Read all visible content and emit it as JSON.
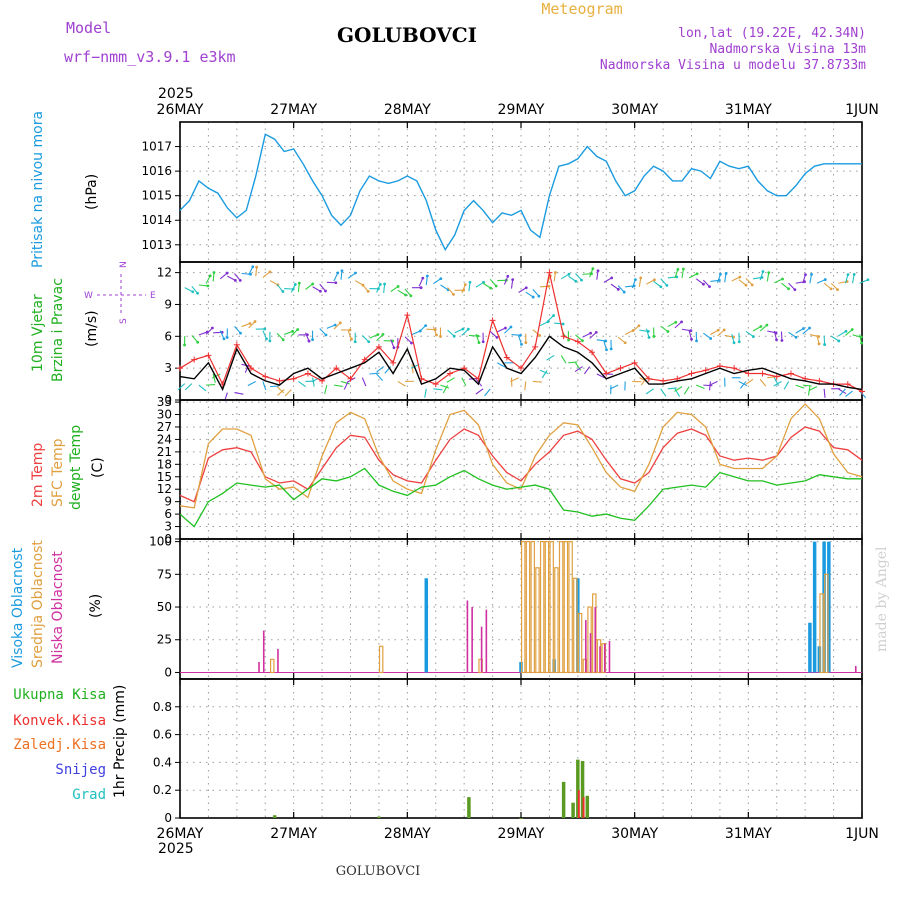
{
  "header": {
    "model_label": "Model",
    "model_name": "wrf−nmm_v3.9.1  e3km",
    "meteogram": "Meteogram",
    "location": "GOLUBOVCI",
    "lonlat": "lon,lat (19.22E, 42.34N)",
    "elevation": "Nadmorska Visina 13m",
    "model_elevation": "Nadmorska Visina u modelu 37.8733m",
    "footer_location": "GOLUBOVCI",
    "watermark": "made by Angel",
    "colors": {
      "model": "#a040d0",
      "title": "#000000",
      "meteogram": "#e8b040",
      "info": "#a040d0"
    }
  },
  "time_axis": {
    "year": "2025",
    "labels": [
      "26MAY",
      "27MAY",
      "28MAY",
      "29MAY",
      "30MAY",
      "31MAY",
      "1JUN"
    ],
    "range_hours": [
      0,
      144
    ]
  },
  "panel_labels": {
    "pressure": {
      "title": "Pritisak na nivou mora",
      "unit": "(hPa)",
      "color": "#1a9be0"
    },
    "wind": {
      "title1": "10m Vjetar",
      "title2": "Brzina i Pravac",
      "unit": "(m/s)",
      "color": "#20b020",
      "compass_top": "N",
      "compass_left": "W",
      "compass_right": "E",
      "compass_bottom": "S",
      "compass_color": "#a040d0"
    },
    "temp": {
      "t2m": "2m Temp",
      "sfc": "SFC Temp",
      "dew": "dewpt Temp",
      "unit": "(C)"
    },
    "cloud": {
      "high": "Visoka Oblacnost",
      "mid": "Srednja Oblacnost",
      "low": "Niska Oblacnost",
      "unit": "(%)"
    },
    "precip": {
      "total": "Ukupna Kisa",
      "conv": "Konvek.Kisa",
      "frz": "Zaledj.Kisa",
      "snow": "Snijeg",
      "hail": "Grad",
      "unit": "1hr Precip (mm)"
    }
  },
  "chart_data": [
    {
      "type": "line",
      "name": "pressure",
      "ylim": [
        1012.3,
        1018.0
      ],
      "yticks": [
        1013,
        1014,
        1015,
        1016,
        1017
      ],
      "ytick_labels": [
        "1013",
        "1014",
        "1015",
        "1016",
        "1017"
      ],
      "series": [
        {
          "name": "Pritisak na nivou mora",
          "color": "#1a9be0",
          "x": [
            0,
            2,
            4,
            6,
            8,
            10,
            12,
            14,
            16,
            18,
            20,
            22,
            24,
            26,
            28,
            30,
            32,
            34,
            36,
            38,
            40,
            42,
            44,
            46,
            48,
            50,
            52,
            54,
            56,
            58,
            60,
            62,
            64,
            66,
            68,
            70,
            72,
            74,
            76,
            78,
            80,
            82,
            84,
            86,
            88,
            90,
            92,
            94,
            96,
            98,
            100,
            102,
            104,
            106,
            108,
            110,
            112,
            114,
            116,
            118,
            120,
            122,
            124,
            126,
            128,
            130,
            132,
            134,
            136,
            138,
            140,
            142,
            144
          ],
          "y": [
            1014.4,
            1014.8,
            1015.6,
            1015.3,
            1015.1,
            1014.5,
            1014.1,
            1014.4,
            1015.8,
            1017.5,
            1017.3,
            1016.8,
            1016.9,
            1016.3,
            1015.6,
            1015.0,
            1014.2,
            1013.8,
            1014.2,
            1015.2,
            1015.8,
            1015.6,
            1015.5,
            1015.6,
            1015.8,
            1015.6,
            1014.8,
            1013.6,
            1012.8,
            1013.4,
            1014.4,
            1014.8,
            1014.4,
            1013.9,
            1014.3,
            1014.2,
            1014.4,
            1013.6,
            1013.3,
            1015.0,
            1016.2,
            1016.3,
            1016.5,
            1017.0,
            1016.6,
            1016.4,
            1015.6,
            1015.0,
            1015.2,
            1015.8,
            1016.2,
            1016.0,
            1015.6,
            1015.6,
            1016.1,
            1016.0,
            1015.7,
            1016.4,
            1016.2,
            1016.1,
            1016.2,
            1015.6,
            1015.2,
            1015.0,
            1015.0,
            1015.4,
            1015.9,
            1016.2,
            1016.3,
            1016.3,
            1016.3,
            1016.3,
            1016.3
          ]
        }
      ]
    },
    {
      "type": "line",
      "name": "wind",
      "ylim": [
        0,
        13
      ],
      "yticks": [
        0,
        3,
        6,
        9,
        12
      ],
      "ytick_labels": [
        "0",
        "3",
        "6",
        "9",
        "12"
      ],
      "series": [
        {
          "name": "Brzina (black)",
          "color": "#000000",
          "x": [
            0,
            3,
            6,
            9,
            12,
            15,
            18,
            21,
            24,
            27,
            30,
            33,
            36,
            39,
            42,
            45,
            48,
            51,
            54,
            57,
            60,
            63,
            66,
            69,
            72,
            75,
            78,
            81,
            84,
            87,
            90,
            93,
            96,
            99,
            102,
            105,
            108,
            111,
            114,
            117,
            120,
            123,
            126,
            129,
            132,
            135,
            138,
            141,
            144
          ],
          "y": [
            2.2,
            2.0,
            3.5,
            1.0,
            4.8,
            2.5,
            1.8,
            1.4,
            2.5,
            3.0,
            2.0,
            2.5,
            3.0,
            3.5,
            4.5,
            2.5,
            4.8,
            1.5,
            2.0,
            3.0,
            2.8,
            1.5,
            5.0,
            3.0,
            2.5,
            4.0,
            6.0,
            5.0,
            4.5,
            3.5,
            2.0,
            2.5,
            3.0,
            1.5,
            1.5,
            1.8,
            2.0,
            2.5,
            3.0,
            2.5,
            2.8,
            3.0,
            2.5,
            2.0,
            1.8,
            1.5,
            1.5,
            1.2,
            1.0
          ]
        },
        {
          "name": "Udari (red)",
          "color": "#ee3030",
          "x": [
            0,
            3,
            6,
            9,
            12,
            15,
            18,
            21,
            24,
            27,
            30,
            33,
            36,
            39,
            42,
            45,
            48,
            51,
            54,
            57,
            60,
            63,
            66,
            69,
            72,
            75,
            78,
            81,
            84,
            87,
            90,
            93,
            96,
            99,
            102,
            105,
            108,
            111,
            114,
            117,
            120,
            123,
            126,
            129,
            132,
            135,
            138,
            141,
            144
          ],
          "y": [
            3.0,
            3.8,
            4.2,
            1.5,
            5.2,
            3.0,
            2.2,
            1.8,
            2.0,
            2.5,
            1.8,
            3.0,
            2.0,
            3.8,
            5.0,
            3.5,
            8.0,
            2.0,
            1.5,
            2.5,
            3.0,
            2.0,
            7.5,
            4.0,
            3.0,
            5.0,
            12.0,
            6.0,
            5.5,
            4.5,
            2.5,
            3.0,
            3.5,
            2.0,
            1.8,
            2.0,
            2.5,
            2.8,
            3.2,
            3.0,
            2.5,
            2.5,
            2.2,
            2.5,
            2.0,
            1.8,
            1.5,
            1.5,
            0.8
          ]
        },
        {
          "name": "Vjetar niz 1",
          "color": "#20b0c0",
          "x": [
            0,
            6,
            12,
            18,
            24,
            30,
            36,
            42,
            48,
            54,
            60,
            66,
            72,
            78,
            84,
            90,
            96,
            102,
            108,
            114,
            120,
            126,
            132,
            138,
            144
          ],
          "y": [
            10.5,
            11.0,
            12.0,
            11.5,
            10.0,
            11.0,
            11.5,
            10.0,
            10.5,
            11.0,
            10.0,
            11.5,
            10.0,
            11.0,
            12.0,
            11.0,
            10.5,
            11.5,
            11.5,
            11.0,
            11.5,
            11.0,
            11.0,
            11.0,
            11.0
          ]
        },
        {
          "name": "Vjetar niz 2",
          "color": "#20b0c0",
          "x": [
            0,
            6,
            12,
            18,
            24,
            30,
            36,
            42,
            48,
            54,
            60,
            66,
            72,
            78,
            84,
            90,
            96,
            102,
            108,
            114,
            120,
            126,
            132,
            138,
            144
          ],
          "y": [
            6.0,
            6.2,
            7.0,
            6.5,
            6.0,
            6.8,
            6.5,
            5.5,
            6.0,
            7.0,
            6.0,
            6.5,
            6.0,
            7.5,
            6.0,
            5.5,
            6.5,
            7.0,
            6.5,
            6.0,
            6.5,
            6.5,
            6.2,
            6.0,
            6.2
          ]
        }
      ]
    },
    {
      "type": "line",
      "name": "temperature",
      "ylim": [
        0,
        33.5
      ],
      "yticks": [
        0,
        3,
        6,
        9,
        12,
        15,
        18,
        21,
        24,
        27,
        30,
        33
      ],
      "ytick_labels": [
        "0",
        "3",
        "6",
        "9",
        "12",
        "15",
        "18",
        "21",
        "24",
        "27",
        "30",
        "33"
      ],
      "series": [
        {
          "name": "2m Temp",
          "color": "#ee4040",
          "x": [
            0,
            3,
            6,
            9,
            12,
            15,
            18,
            21,
            24,
            27,
            30,
            33,
            36,
            39,
            42,
            45,
            48,
            51,
            54,
            57,
            60,
            63,
            66,
            69,
            72,
            75,
            78,
            81,
            84,
            87,
            90,
            93,
            96,
            99,
            102,
            105,
            108,
            111,
            114,
            117,
            120,
            123,
            126,
            129,
            132,
            135,
            138,
            141,
            144
          ],
          "y": [
            10.5,
            9.0,
            19.5,
            21.5,
            22.0,
            21.0,
            15.0,
            13.5,
            14.0,
            12.0,
            17.0,
            22.0,
            25.0,
            24.5,
            19.0,
            15.5,
            14.0,
            13.5,
            19.0,
            24.0,
            26.5,
            25.0,
            20.0,
            16.0,
            14.0,
            18.0,
            21.0,
            25.0,
            26.0,
            24.0,
            19.0,
            14.5,
            13.5,
            16.0,
            22.0,
            25.5,
            26.5,
            25.0,
            20.0,
            19.0,
            19.5,
            19.0,
            20.0,
            24.5,
            27.0,
            26.0,
            22.0,
            21.5,
            19.0
          ]
        },
        {
          "name": "SFC Temp",
          "color": "#e0a040",
          "x": [
            0,
            3,
            6,
            9,
            12,
            15,
            18,
            21,
            24,
            27,
            30,
            33,
            36,
            39,
            42,
            45,
            48,
            51,
            54,
            57,
            60,
            63,
            66,
            69,
            72,
            75,
            78,
            81,
            84,
            87,
            90,
            93,
            96,
            99,
            102,
            105,
            108,
            111,
            114,
            117,
            120,
            123,
            126,
            129,
            132,
            135,
            138,
            141,
            144
          ],
          "y": [
            8.0,
            7.5,
            23.0,
            26.5,
            26.5,
            25.0,
            14.5,
            12.0,
            12.5,
            10.0,
            20.0,
            28.0,
            30.5,
            29.0,
            20.0,
            14.0,
            12.0,
            11.0,
            21.5,
            30.0,
            31.0,
            27.5,
            18.0,
            13.5,
            12.0,
            20.0,
            25.0,
            28.0,
            27.5,
            22.0,
            16.0,
            12.5,
            11.5,
            18.0,
            27.0,
            30.5,
            30.0,
            27.0,
            18.0,
            17.0,
            17.0,
            17.0,
            20.0,
            29.0,
            32.5,
            29.0,
            20.5,
            16.0,
            15.0
          ]
        },
        {
          "name": "dewpt Temp",
          "color": "#20c020",
          "x": [
            0,
            3,
            6,
            9,
            12,
            15,
            18,
            21,
            24,
            27,
            30,
            33,
            36,
            39,
            42,
            45,
            48,
            51,
            54,
            57,
            60,
            63,
            66,
            69,
            72,
            75,
            78,
            81,
            84,
            87,
            90,
            93,
            96,
            99,
            102,
            105,
            108,
            111,
            114,
            117,
            120,
            123,
            126,
            129,
            132,
            135,
            138,
            141,
            144
          ],
          "y": [
            6.0,
            3.0,
            9.0,
            11.0,
            13.5,
            13.0,
            12.5,
            13.0,
            9.5,
            12.0,
            14.5,
            14.0,
            15.0,
            17.0,
            13.0,
            11.5,
            10.5,
            12.5,
            13.0,
            15.0,
            16.5,
            14.5,
            13.0,
            12.0,
            12.5,
            13.0,
            12.0,
            7.0,
            6.5,
            5.5,
            6.0,
            5.0,
            4.5,
            8.0,
            12.0,
            12.5,
            13.0,
            12.5,
            16.0,
            15.0,
            14.0,
            14.0,
            13.0,
            13.5,
            14.0,
            15.5,
            15.0,
            14.5,
            14.5
          ]
        }
      ]
    },
    {
      "type": "bar",
      "name": "cloud",
      "ylim": [
        -5,
        102
      ],
      "yticks": [
        0,
        25,
        50,
        75,
        100
      ],
      "ytick_labels": [
        "0",
        "25",
        "50",
        "75",
        "100"
      ],
      "series": [
        {
          "name": "Visoka Oblacnost",
          "color": "#1a9be0",
          "x": [
            52,
            72,
            79,
            84,
            133,
            134,
            135,
            136,
            137
          ],
          "y": [
            72,
            8,
            10,
            72,
            38,
            100,
            20,
            100,
            100
          ]
        },
        {
          "name": "Srednja Oblacnost",
          "color": "#e0a040",
          "x": [
            19,
            42,
            63,
            72,
            73,
            74,
            75,
            76,
            77,
            78,
            79,
            80,
            81,
            82,
            83,
            84,
            85,
            86,
            87,
            88,
            89,
            135,
            136
          ],
          "y": [
            10,
            20,
            10,
            100,
            100,
            100,
            80,
            100,
            100,
            100,
            80,
            100,
            100,
            100,
            72,
            45,
            10,
            50,
            60,
            25,
            22,
            60,
            75
          ]
        },
        {
          "name": "Niska Oblacnost",
          "color": "#d030a0",
          "x": [
            17,
            18,
            21,
            61,
            62,
            64,
            65,
            86,
            87,
            88,
            89,
            90,
            91,
            143
          ],
          "y": [
            8,
            32,
            18,
            55,
            50,
            35,
            48,
            40,
            30,
            50,
            20,
            22,
            24,
            5
          ]
        }
      ]
    },
    {
      "type": "bar",
      "name": "precipitation",
      "ylim": [
        0,
        1.0
      ],
      "yticks": [
        0,
        0.2,
        0.4,
        0.6,
        0.8
      ],
      "ytick_labels": [
        "0",
        "0.2",
        "0.4",
        "0.6",
        "0.8"
      ],
      "series": [
        {
          "name": "Ukupna Kisa",
          "color": "#5a9a20",
          "x": [
            20,
            42,
            61,
            72,
            81,
            83,
            84,
            85,
            86
          ],
          "y": [
            0.02,
            0.01,
            0.15,
            0.0,
            0.26,
            0.11,
            0.42,
            0.41,
            0.16
          ]
        },
        {
          "name": "Konvek.Kisa",
          "color": "#ee3030",
          "x": [
            84,
            85
          ],
          "y": [
            0.2,
            0.15
          ]
        }
      ]
    }
  ]
}
